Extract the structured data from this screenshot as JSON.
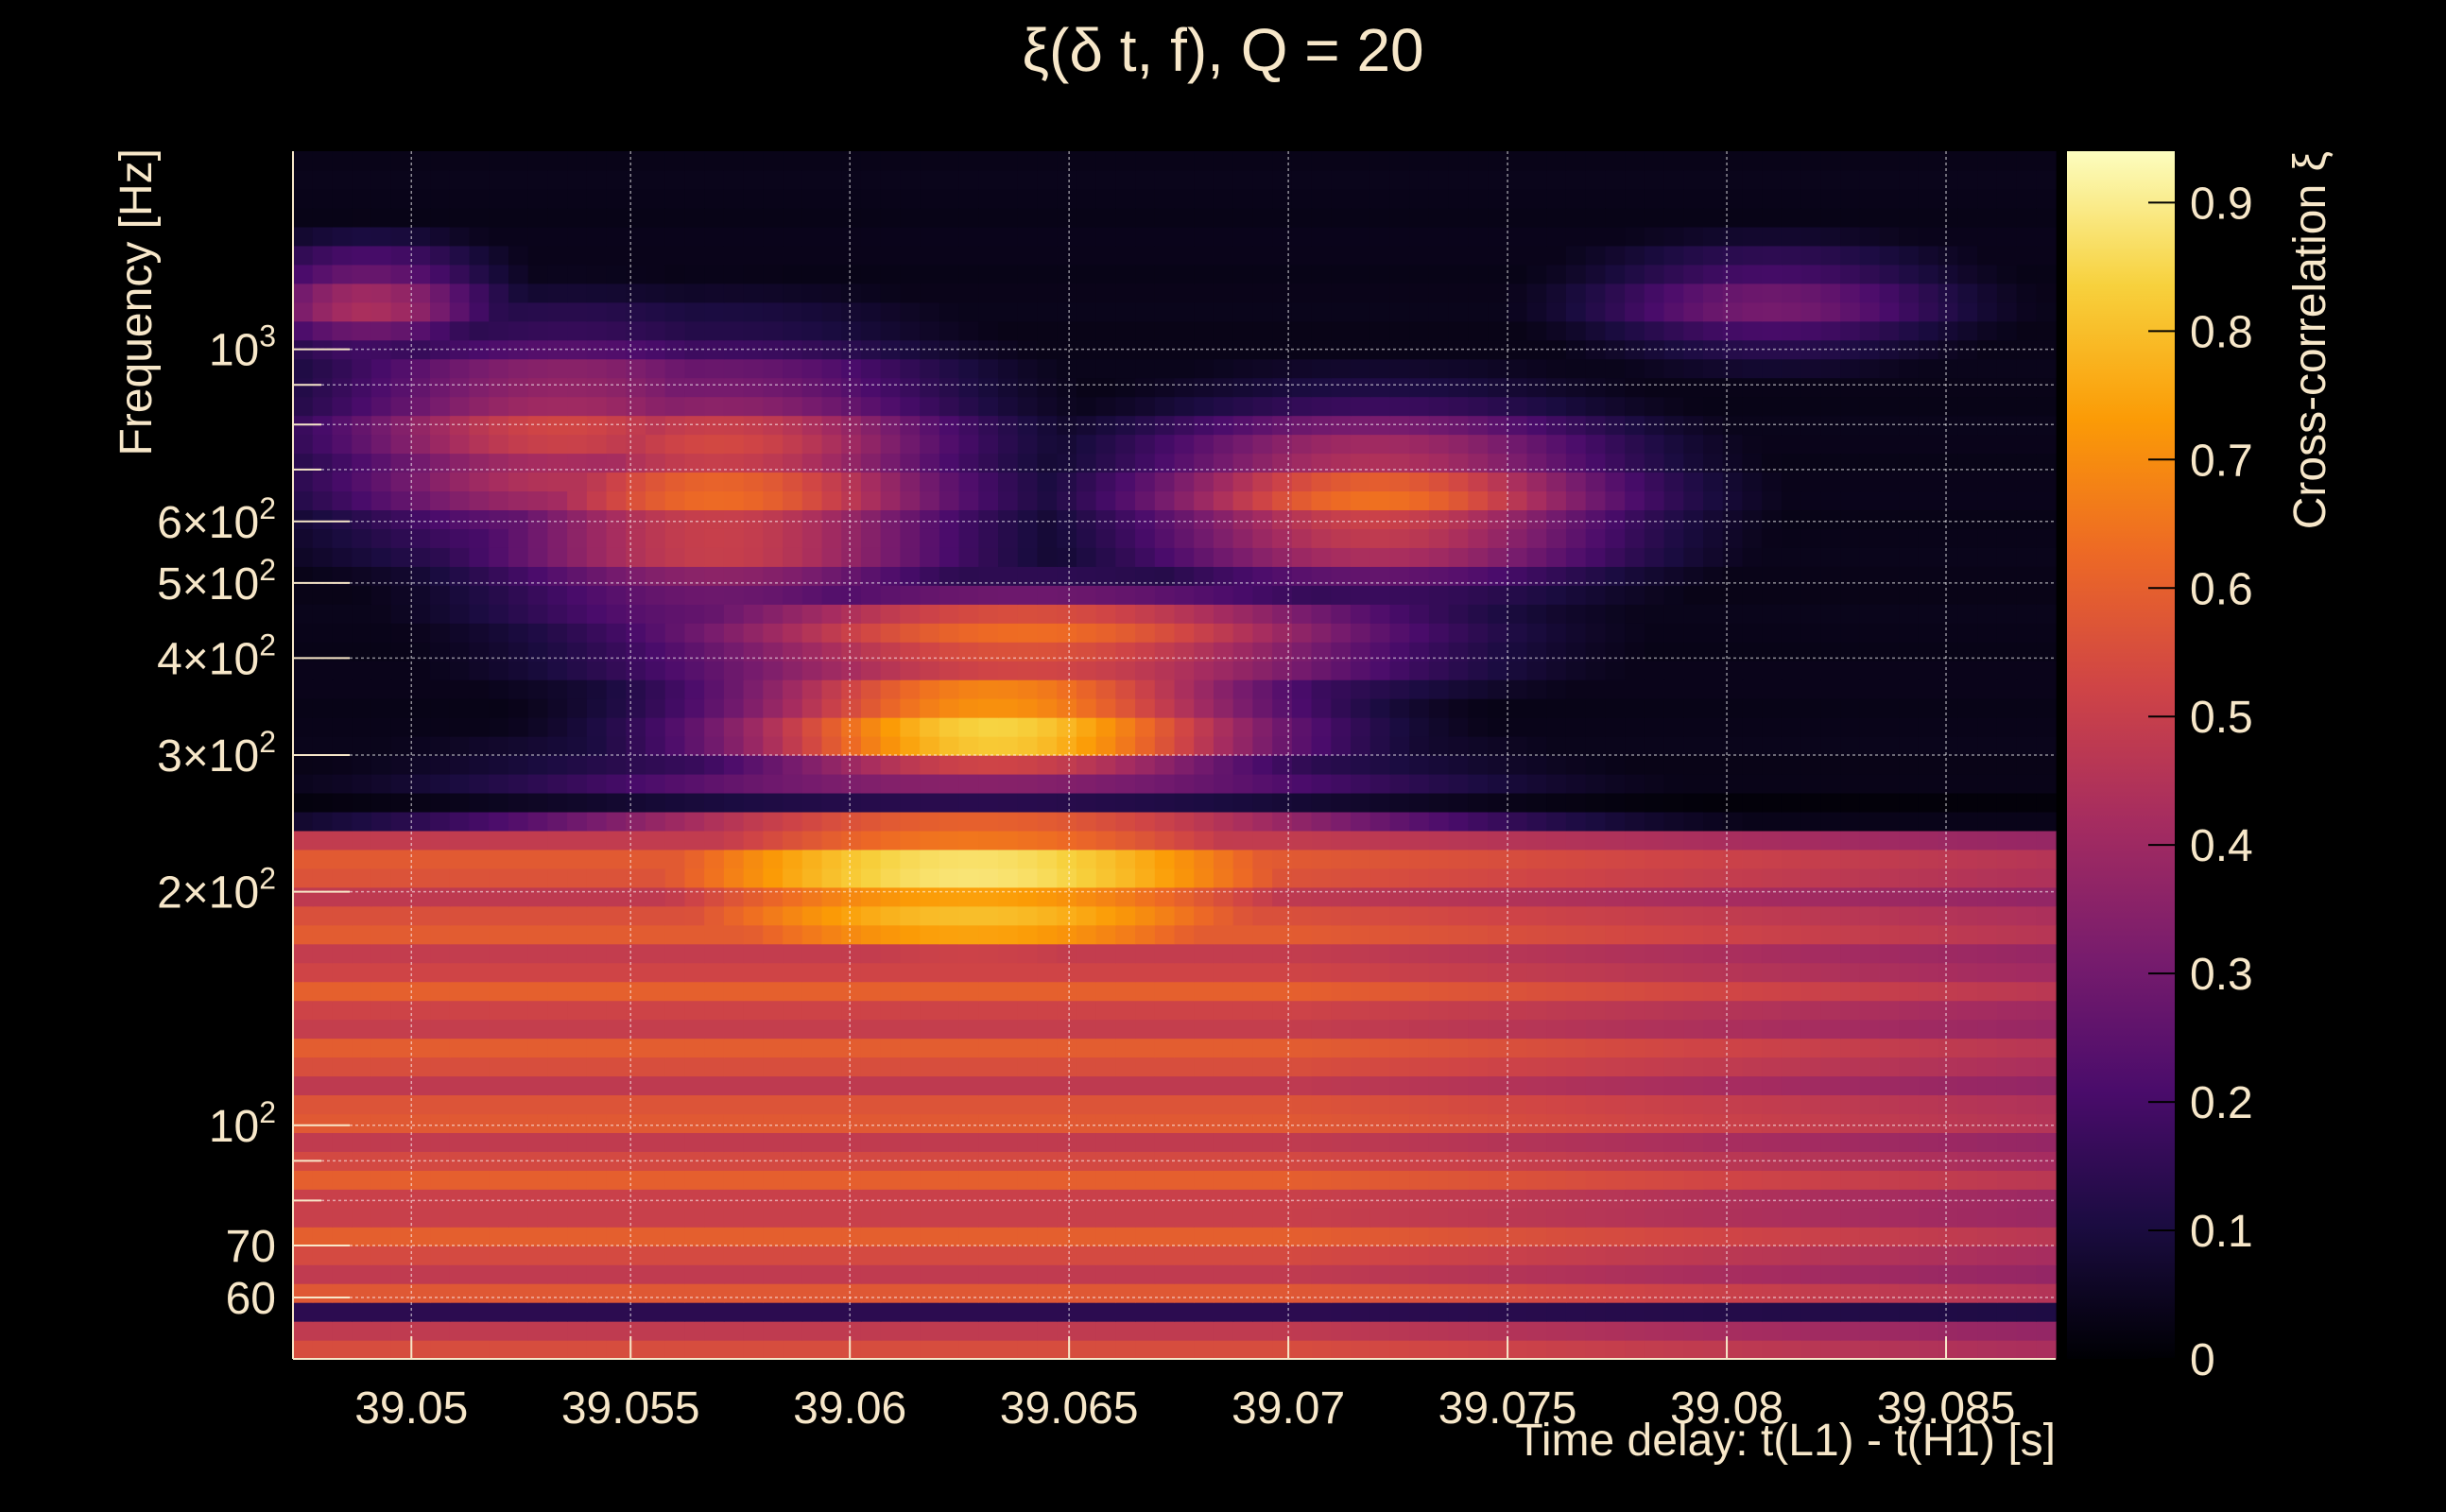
{
  "chart_data": {
    "type": "heatmap",
    "title": "ξ(δ t, f), Q = 20",
    "xlabel": "Time delay: t(L1) - t(H1) [s]",
    "ylabel": "Frequency [Hz]",
    "colorbar_label": "Cross-correlation ξ",
    "y_scale": "log",
    "xlim": [
      39.0473,
      39.0875
    ],
    "ylim": [
      50,
      1800
    ],
    "zlim": [
      0,
      0.94
    ],
    "grid": true,
    "colormap": [
      "#000004",
      "#1b0c41",
      "#4a0c6b",
      "#781c6d",
      "#a52c60",
      "#cf4446",
      "#ed6925",
      "#fb9b06",
      "#f7d13d",
      "#fcfdbf"
    ],
    "x_ticks": [
      {
        "value": 39.05,
        "label": "39.05"
      },
      {
        "value": 39.055,
        "label": "39.055"
      },
      {
        "value": 39.06,
        "label": "39.06"
      },
      {
        "value": 39.065,
        "label": "39.065"
      },
      {
        "value": 39.07,
        "label": "39.07"
      },
      {
        "value": 39.075,
        "label": "39.075"
      },
      {
        "value": 39.08,
        "label": "39.08"
      },
      {
        "value": 39.085,
        "label": "39.085"
      }
    ],
    "y_ticks": [
      {
        "value": 60,
        "base": "60",
        "exp": ""
      },
      {
        "value": 70,
        "base": "70",
        "exp": ""
      },
      {
        "value": 100,
        "base": "10",
        "exp": "2"
      },
      {
        "value": 200,
        "base": "2×10",
        "exp": "2"
      },
      {
        "value": 300,
        "base": "3×10",
        "exp": "2"
      },
      {
        "value": 400,
        "base": "4×10",
        "exp": "2"
      },
      {
        "value": 500,
        "base": "5×10",
        "exp": "2"
      },
      {
        "value": 600,
        "base": "6×10",
        "exp": "2"
      },
      {
        "value": 1000,
        "base": "10",
        "exp": "3"
      }
    ],
    "y_minor_ticks": [
      80,
      90,
      700,
      800,
      900
    ],
    "colorbar_ticks": [
      {
        "value": 0,
        "label": "0"
      },
      {
        "value": 0.1,
        "label": "0.1"
      },
      {
        "value": 0.2,
        "label": "0.2"
      },
      {
        "value": 0.3,
        "label": "0.3"
      },
      {
        "value": 0.4,
        "label": "0.4"
      },
      {
        "value": 0.5,
        "label": "0.5"
      },
      {
        "value": 0.6,
        "label": "0.6"
      },
      {
        "value": 0.7,
        "label": "0.7"
      },
      {
        "value": 0.8,
        "label": "0.8"
      },
      {
        "value": 0.9,
        "label": "0.9"
      }
    ],
    "features": [
      {
        "t": 39.0633,
        "f": 330,
        "peak": 0.93,
        "st": 0.0045,
        "sf": 0.06
      },
      {
        "t": 39.0628,
        "f": 205,
        "peak": 0.94,
        "st": 0.0075,
        "sf": 0.1
      },
      {
        "t": 39.064,
        "f": 420,
        "peak": 0.72,
        "st": 0.006,
        "sf": 0.05
      },
      {
        "t": 39.057,
        "f": 660,
        "peak": 0.65,
        "st": 0.004,
        "sf": 0.12
      },
      {
        "t": 39.0535,
        "f": 760,
        "peak": 0.55,
        "st": 0.004,
        "sf": 0.1
      },
      {
        "t": 39.072,
        "f": 640,
        "peak": 0.66,
        "st": 0.004,
        "sf": 0.08
      },
      {
        "t": 39.049,
        "f": 1150,
        "peak": 0.45,
        "st": 0.002,
        "sf": 0.05
      },
      {
        "t": 39.081,
        "f": 1150,
        "peak": 0.32,
        "st": 0.003,
        "sf": 0.05
      }
    ],
    "low_frequency_level": 0.6,
    "suppressed_bands_hz": [
      260,
      57
    ]
  }
}
